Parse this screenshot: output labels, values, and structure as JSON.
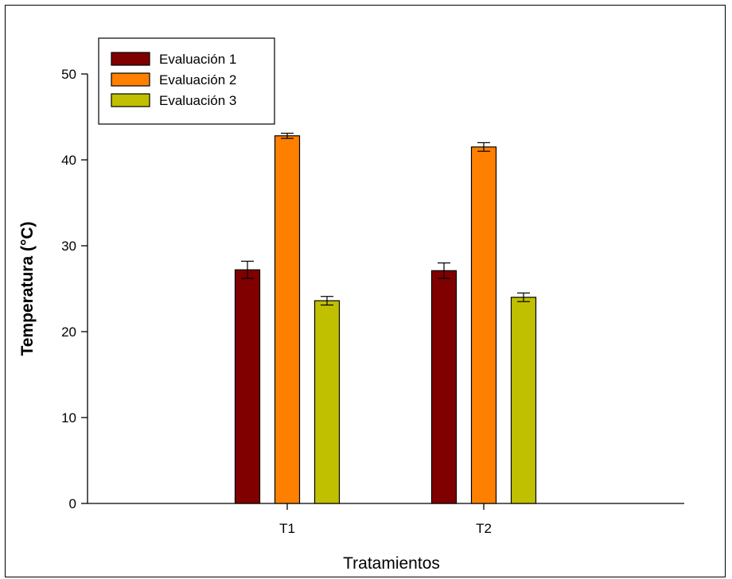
{
  "chart_data": {
    "type": "bar",
    "xlabel": "Tratamientos",
    "ylabel": "Temperatura (°C)",
    "categories": [
      "T1",
      "T2"
    ],
    "ylim": [
      0,
      50
    ],
    "yticks": [
      0,
      10,
      20,
      30,
      40,
      50
    ],
    "grid": false,
    "legend_position": "top-left",
    "series": [
      {
        "name": "Evaluación 1",
        "color": "#800000",
        "values": [
          27.2,
          27.1
        ],
        "errors": [
          1.0,
          0.9
        ]
      },
      {
        "name": "Evaluación 2",
        "color": "#ff8000",
        "values": [
          42.8,
          41.5
        ],
        "errors": [
          0.3,
          0.5
        ]
      },
      {
        "name": "Evaluación 3",
        "color": "#c0c000",
        "values": [
          23.6,
          24.0
        ],
        "errors": [
          0.5,
          0.5
        ]
      }
    ]
  }
}
